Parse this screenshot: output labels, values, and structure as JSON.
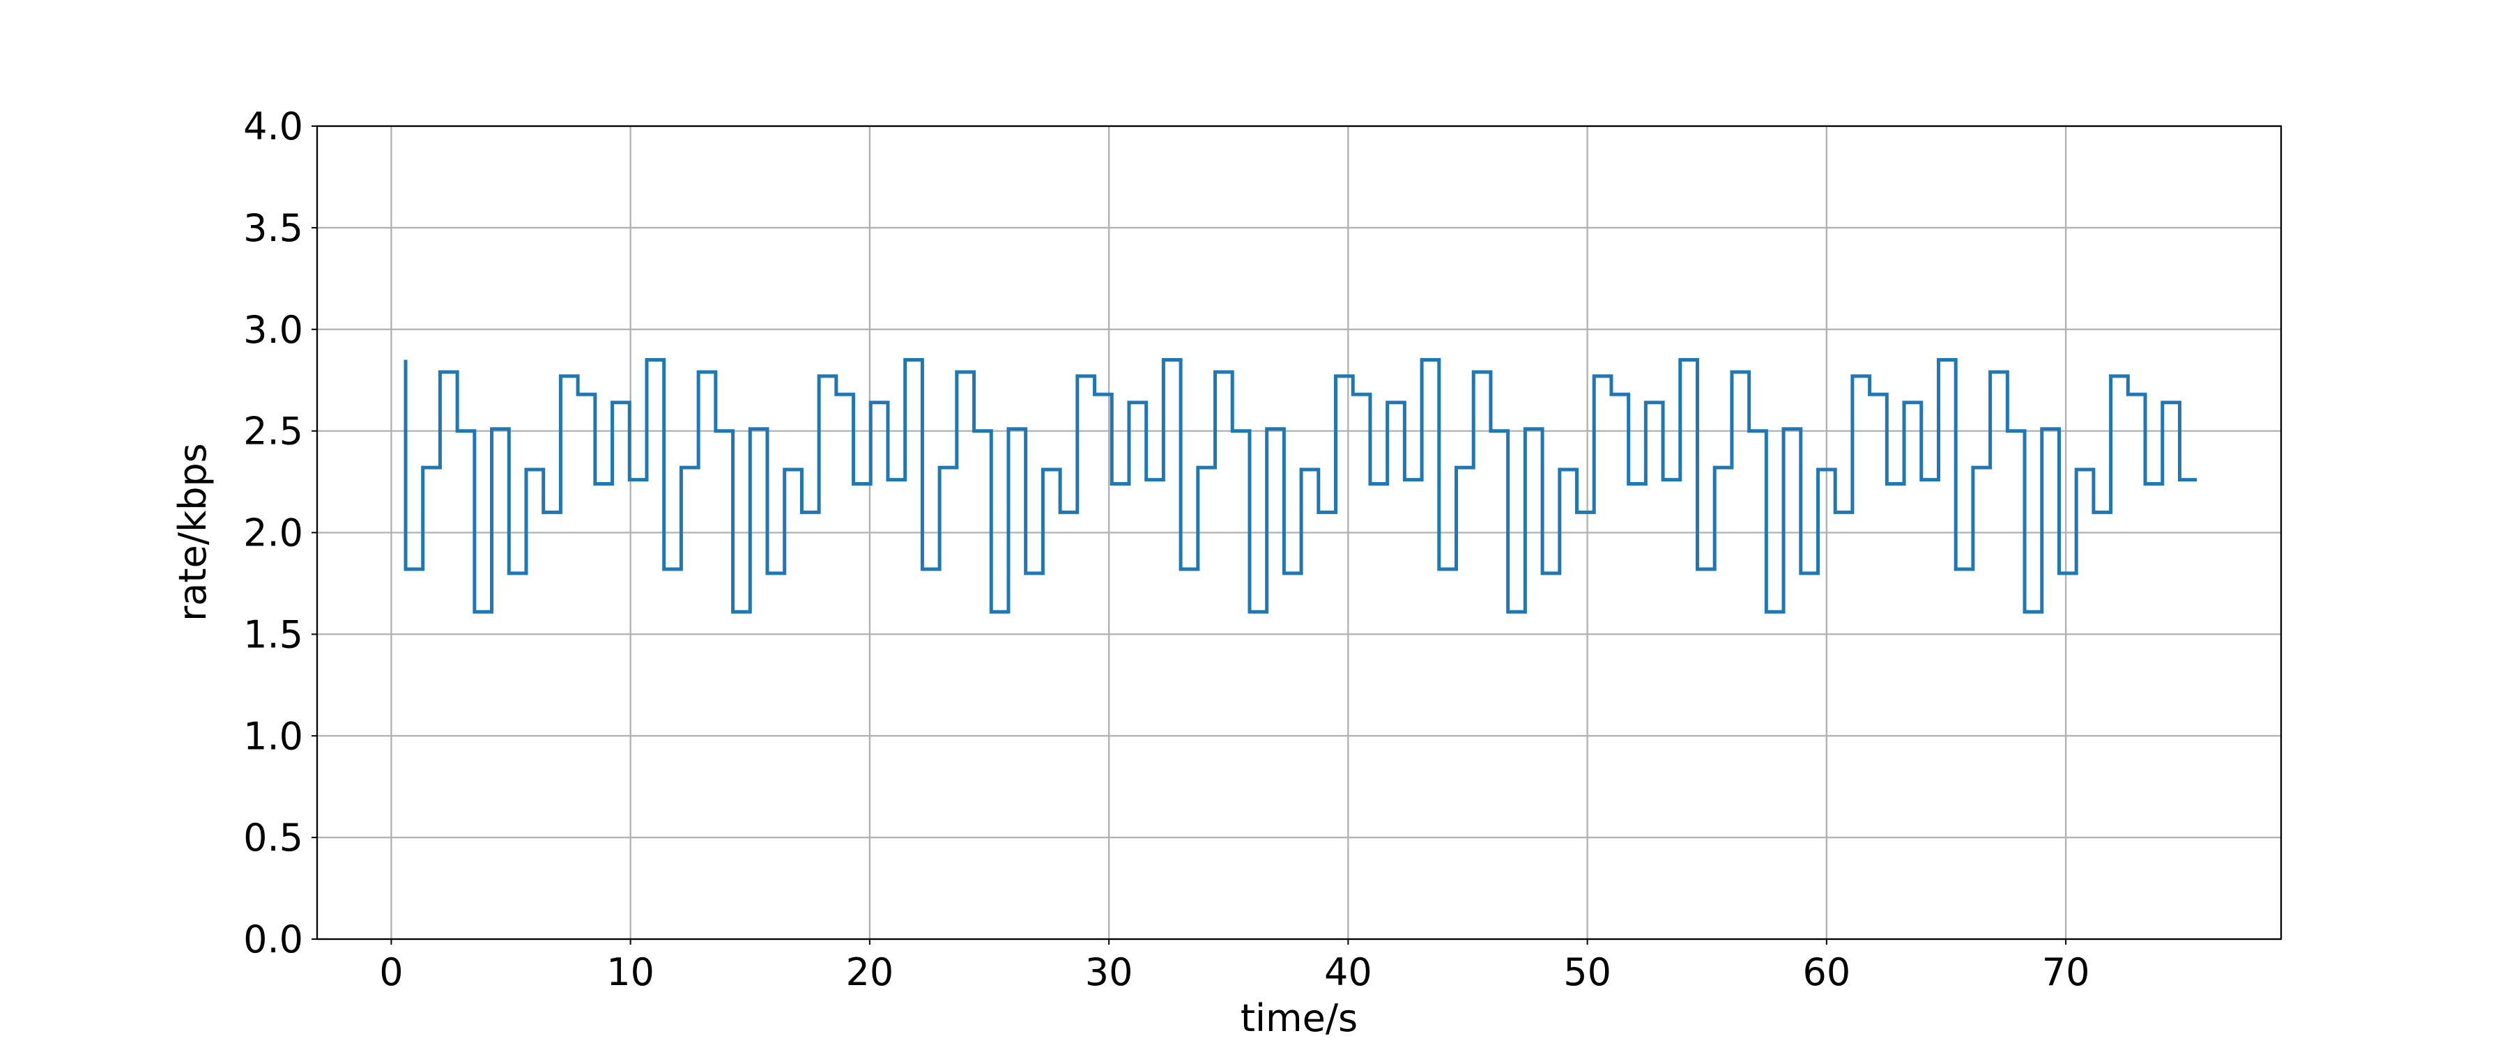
{
  "chart_data": {
    "type": "line",
    "step": "pre",
    "xlabel": "time/s",
    "ylabel": "rate/kbps",
    "x": [
      0.6,
      1.32,
      2.04,
      2.76,
      3.48,
      4.2,
      4.92,
      5.64,
      6.36,
      7.08,
      7.8,
      8.52,
      9.24,
      9.96,
      10.68,
      11.4,
      12.12,
      12.84,
      13.56,
      14.28,
      15.0,
      15.72,
      16.44,
      17.16,
      17.88,
      18.6,
      19.32,
      20.04,
      20.76,
      21.48,
      22.2,
      22.92,
      23.64,
      24.36,
      25.08,
      25.8,
      26.52,
      27.24,
      27.96,
      28.68,
      29.4,
      30.12,
      30.84,
      31.56,
      32.28,
      33.0,
      33.72,
      34.44,
      35.16,
      35.88,
      36.6,
      37.32,
      38.04,
      38.76,
      39.48,
      40.2,
      40.92,
      41.64,
      42.36,
      43.08,
      43.8,
      44.52,
      45.24,
      45.96,
      46.68,
      47.4,
      48.12,
      48.84,
      49.56,
      50.28,
      51.0,
      51.72,
      52.44,
      53.16,
      53.88,
      54.6,
      55.32,
      56.04,
      56.76,
      57.48,
      58.2,
      58.92,
      59.64,
      60.36,
      61.08,
      61.8,
      62.52,
      63.24,
      63.96,
      64.68,
      65.4,
      66.12,
      66.84,
      67.56,
      68.28,
      69.0,
      69.72,
      70.44,
      71.16,
      71.88,
      72.6,
      73.32,
      74.04,
      74.76,
      75.48
    ],
    "values": [
      2.85,
      1.82,
      2.32,
      2.79,
      2.5,
      1.61,
      2.51,
      1.8,
      2.31,
      2.1,
      2.77,
      2.68,
      2.24,
      2.64,
      2.26,
      2.85,
      1.82,
      2.32,
      2.79,
      2.5,
      1.61,
      2.51,
      1.8,
      2.31,
      2.1,
      2.77,
      2.68,
      2.24,
      2.64,
      2.26,
      2.85,
      1.82,
      2.32,
      2.79,
      2.5,
      1.61,
      2.51,
      1.8,
      2.31,
      2.1,
      2.77,
      2.68,
      2.24,
      2.64,
      2.26,
      2.85,
      1.82,
      2.32,
      2.79,
      2.5,
      1.61,
      2.51,
      1.8,
      2.31,
      2.1,
      2.77,
      2.68,
      2.24,
      2.64,
      2.26,
      2.85,
      1.82,
      2.32,
      2.79,
      2.5,
      1.61,
      2.51,
      1.8,
      2.31,
      2.1,
      2.77,
      2.68,
      2.24,
      2.64,
      2.26,
      2.85,
      1.82,
      2.32,
      2.79,
      2.5,
      1.61,
      2.51,
      1.8,
      2.31,
      2.1,
      2.77,
      2.68,
      2.24,
      2.64,
      2.26,
      2.85,
      1.82,
      2.32,
      2.79,
      2.5,
      1.61,
      2.51,
      1.8,
      2.31,
      2.1,
      2.77,
      2.68,
      2.24,
      2.64,
      2.26
    ],
    "color": "#1f77b4",
    "xlim": [
      -3.1,
      79.0
    ],
    "xticks": [
      0,
      10,
      20,
      30,
      40,
      50,
      60,
      70
    ],
    "ylim": [
      0,
      4
    ],
    "yticks": [
      {
        "value": 0,
        "label": "0.0"
      },
      {
        "value": 0.5,
        "label": "0.5"
      },
      {
        "value": 1,
        "label": "1.0"
      },
      {
        "value": 1.5,
        "label": "1.5"
      },
      {
        "value": 2,
        "label": "2.0"
      },
      {
        "value": 2.5,
        "label": "2.5"
      },
      {
        "value": 3,
        "label": "3.0"
      },
      {
        "value": 3.5,
        "label": "3.5"
      },
      {
        "value": 4,
        "label": "4.0"
      }
    ],
    "grid": true
  }
}
